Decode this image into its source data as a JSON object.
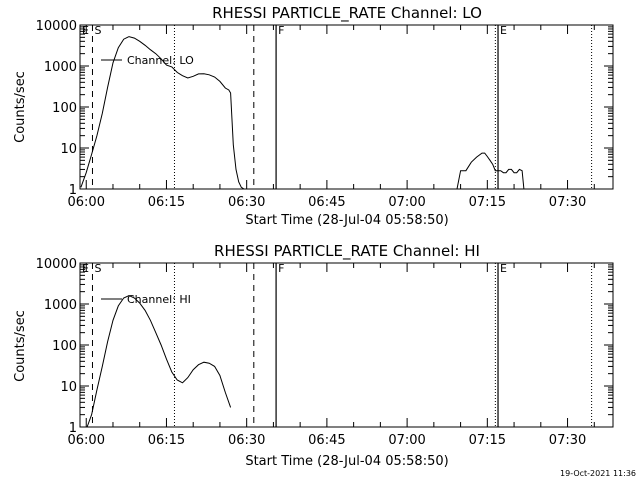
{
  "stamp": "19-Oct-2021 11:36",
  "chart_data": [
    {
      "type": "line",
      "title": "RHESSI PARTICLE_RATE Channel: LO",
      "xlabel": "Start Time (28-Jul-04 05:58:50)",
      "ylabel": "Counts/sec",
      "yscale": "log",
      "xlim": [
        "05:58:50",
        "07:38:30"
      ],
      "ylim": [
        1,
        10000
      ],
      "x_tick_labels": [
        "06:00",
        "06:15",
        "06:30",
        "06:45",
        "07:00",
        "07:15",
        "07:30"
      ],
      "y_tick_labels": [
        "1",
        "10",
        "100",
        "1000",
        "10000"
      ],
      "legend": "Channel: LO",
      "markers": [
        "E",
        "S",
        "F",
        "E"
      ],
      "vertical_lines": {
        "dashed": [
          "05:58:50",
          "06:01:10",
          "06:31:20"
        ],
        "dotted": [
          "06:16:30",
          "07:16:30",
          "07:34:30"
        ],
        "solid": [
          "06:35:30",
          "07:17:00"
        ]
      },
      "series": [
        {
          "x": [
            "05:59:00",
            "06:00:00",
            "06:01:00",
            "06:02:00",
            "06:03:00",
            "06:04:00",
            "06:05:00",
            "06:06:00",
            "06:07:00",
            "06:08:00",
            "06:09:00",
            "06:10:00",
            "06:11:00",
            "06:12:00",
            "06:13:00",
            "06:14:00",
            "06:15:00",
            "06:16:00",
            "06:17:00",
            "06:18:00",
            "06:19:00",
            "06:20:00",
            "06:21:00",
            "06:22:00",
            "06:23:00",
            "06:24:00",
            "06:25:00",
            "06:26:00",
            "06:26:40",
            "06:27:00",
            "06:27:30",
            "06:28:00",
            "06:28:30",
            "06:29:00",
            "06:29:30"
          ],
          "y": [
            1.1,
            2.5,
            7,
            20,
            70,
            300,
            1200,
            2800,
            4500,
            5200,
            4800,
            4000,
            3200,
            2500,
            2000,
            1500,
            1050,
            950,
            700,
            580,
            510,
            560,
            640,
            650,
            610,
            540,
            420,
            290,
            260,
            220,
            12,
            3,
            1.5,
            1.1,
            1
          ],
          "y_breaks": [
            [
              2
            ]
          ]
        },
        {
          "x": [
            "07:09:20",
            "07:10:00",
            "07:11:00",
            "07:12:00",
            "07:13:00",
            "07:14:00",
            "07:14:30",
            "07:15:00",
            "07:15:30",
            "07:16:00",
            "07:16:30",
            "07:17:00",
            "07:17:30",
            "07:18:00",
            "07:18:30",
            "07:19:00",
            "07:19:30",
            "07:20:00",
            "07:20:30",
            "07:21:00",
            "07:21:30",
            "07:21:50"
          ],
          "y": [
            1,
            2.8,
            2.8,
            4.5,
            6,
            7.5,
            7.5,
            6.2,
            5,
            4,
            2.8,
            2.8,
            2.8,
            2.5,
            2.5,
            3,
            3,
            2.5,
            2.5,
            3,
            2.8,
            1
          ]
        }
      ]
    },
    {
      "type": "line",
      "title": "RHESSI PARTICLE_RATE Channel: HI",
      "xlabel": "Start Time (28-Jul-04 05:58:50)",
      "ylabel": "Counts/sec",
      "yscale": "log",
      "xlim": [
        "05:58:50",
        "07:38:30"
      ],
      "ylim": [
        1,
        10000
      ],
      "x_tick_labels": [
        "06:00",
        "06:15",
        "06:30",
        "06:45",
        "07:00",
        "07:15",
        "07:30"
      ],
      "y_tick_labels": [
        "1",
        "10",
        "100",
        "1000",
        "10000"
      ],
      "legend": "Channel: HI",
      "markers": [
        "E",
        "S",
        "F",
        "E"
      ],
      "vertical_lines": {
        "dashed": [
          "05:58:50",
          "06:01:10",
          "06:31:20"
        ],
        "dotted": [
          "06:16:30",
          "07:16:30",
          "07:34:30"
        ],
        "solid": [
          "06:35:30",
          "07:17:00"
        ]
      },
      "series": [
        {
          "x": [
            "06:00:10",
            "06:01:00",
            "06:02:00",
            "06:03:00",
            "06:04:00",
            "06:05:00",
            "06:06:00",
            "06:07:00",
            "06:08:00",
            "06:09:00",
            "06:10:00",
            "06:11:00",
            "06:12:00",
            "06:13:00",
            "06:14:00",
            "06:15:00",
            "06:16:00",
            "06:17:00",
            "06:18:00",
            "06:19:00",
            "06:20:00",
            "06:21:00",
            "06:22:00",
            "06:23:00",
            "06:24:00",
            "06:25:00",
            "06:26:00",
            "06:27:00"
          ],
          "y": [
            1,
            2,
            8,
            30,
            120,
            400,
            900,
            1400,
            1600,
            1400,
            1050,
            700,
            400,
            200,
            100,
            45,
            22,
            14,
            12,
            16,
            25,
            33,
            38,
            36,
            30,
            18,
            7,
            3
          ]
        }
      ]
    }
  ]
}
